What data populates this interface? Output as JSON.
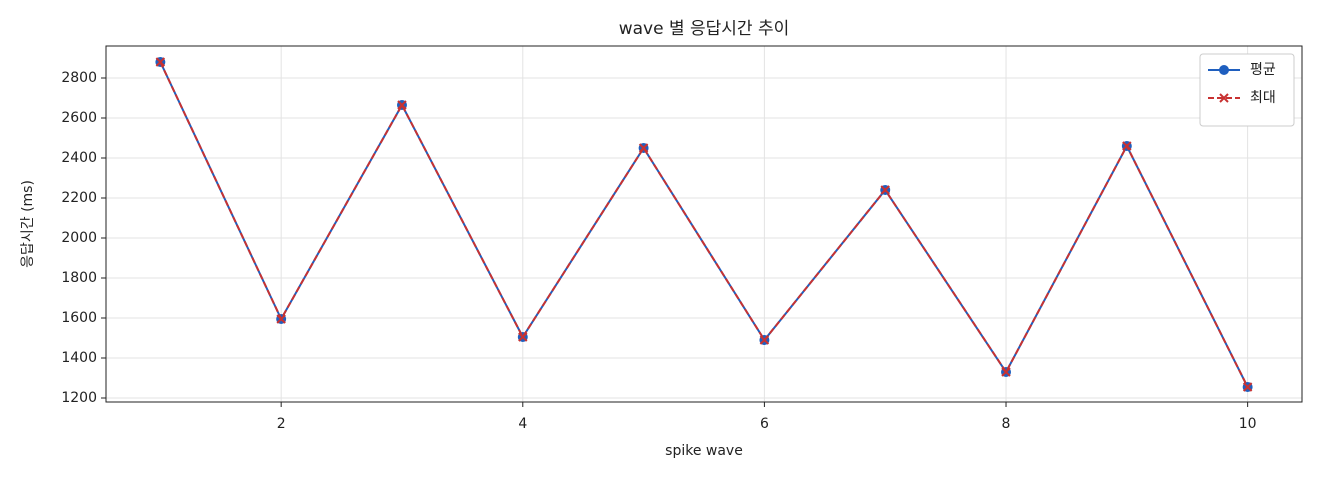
{
  "chart_data": {
    "type": "line",
    "title": "wave 별 응답시간 추이",
    "x_label": "spike wave",
    "y_label": "응답시간 (ms)",
    "x": [
      1,
      2,
      3,
      4,
      5,
      6,
      7,
      8,
      9,
      10
    ],
    "series": [
      {
        "name": "평균",
        "color": "#1f5fbf",
        "marker": "o",
        "linestyle": "solid",
        "values": [
          2880,
          1595,
          2665,
          1505,
          2450,
          1490,
          2240,
          1330,
          2460,
          1255
        ]
      },
      {
        "name": "최대",
        "color": "#c83232",
        "marker": "x",
        "linestyle": "dashed",
        "values": [
          2880,
          1595,
          2665,
          1505,
          2450,
          1490,
          2240,
          1330,
          2460,
          1255
        ]
      }
    ],
    "xlim": [
      0.55,
      10.45
    ],
    "xticks": [
      2,
      4,
      6,
      8,
      10
    ],
    "ylim": [
      1180,
      2960
    ],
    "yticks": [
      1200,
      1400,
      1600,
      1800,
      2000,
      2200,
      2400,
      2600,
      2800
    ],
    "grid": true,
    "legend": "upper right"
  }
}
